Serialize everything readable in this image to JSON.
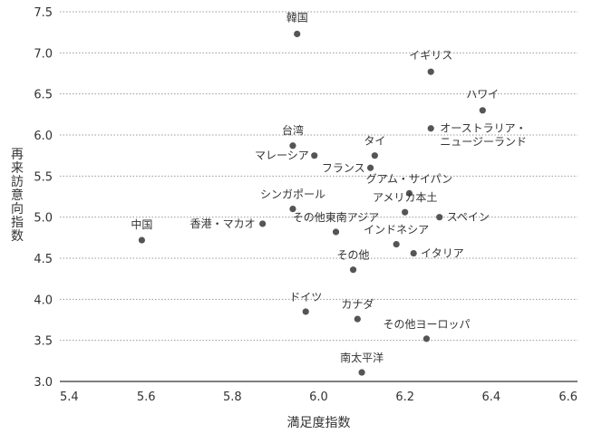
{
  "chart_data": {
    "type": "scatter",
    "title": "",
    "xlabel": "満足度指数",
    "ylabel": "再来訪意向指数",
    "xlim": [
      5.4,
      6.6
    ],
    "ylim": [
      3.0,
      7.5
    ],
    "xticks": [
      "5.4",
      "5.6",
      "5.8",
      "6.0",
      "6.2",
      "6.4",
      "6.6"
    ],
    "yticks": [
      "3.0",
      "3.5",
      "4.0",
      "4.5",
      "5.0",
      "5.5",
      "6.0",
      "6.5",
      "7.0",
      "7.5"
    ],
    "grid": "horizontal dotted",
    "marker_color": "#555555",
    "points": [
      {
        "label": "韓国",
        "x": 5.95,
        "y": 7.23
      },
      {
        "label": "イギリス",
        "x": 6.26,
        "y": 6.77
      },
      {
        "label": "ハワイ",
        "x": 6.38,
        "y": 6.3
      },
      {
        "label": "オーストラリア・\nニュージーランド",
        "x": 6.26,
        "y": 6.08
      },
      {
        "label": "台湾",
        "x": 5.94,
        "y": 5.87
      },
      {
        "label": "マレーシア",
        "x": 5.99,
        "y": 5.75
      },
      {
        "label": "タイ",
        "x": 6.13,
        "y": 5.75
      },
      {
        "label": "フランス",
        "x": 6.12,
        "y": 5.6
      },
      {
        "label": "グアム・サイパン",
        "x": 6.21,
        "y": 5.29
      },
      {
        "label": "シンガポール",
        "x": 5.94,
        "y": 5.1
      },
      {
        "label": "アメリカ本土",
        "x": 6.2,
        "y": 5.06
      },
      {
        "label": "スペイン",
        "x": 6.28,
        "y": 5.0
      },
      {
        "label": "香港・マカオ",
        "x": 5.87,
        "y": 4.92
      },
      {
        "label": "その他東南アジア",
        "x": 6.04,
        "y": 4.82
      },
      {
        "label": "中国",
        "x": 5.59,
        "y": 4.72
      },
      {
        "label": "インドネシア",
        "x": 6.18,
        "y": 4.67
      },
      {
        "label": "イタリア",
        "x": 6.22,
        "y": 4.56
      },
      {
        "label": "その他",
        "x": 6.08,
        "y": 4.36
      },
      {
        "label": "ドイツ",
        "x": 5.97,
        "y": 3.85
      },
      {
        "label": "カナダ",
        "x": 6.09,
        "y": 3.76
      },
      {
        "label": "その他ヨーロッパ",
        "x": 6.25,
        "y": 3.52
      },
      {
        "label": "南太平洋",
        "x": 6.1,
        "y": 3.11
      }
    ]
  }
}
